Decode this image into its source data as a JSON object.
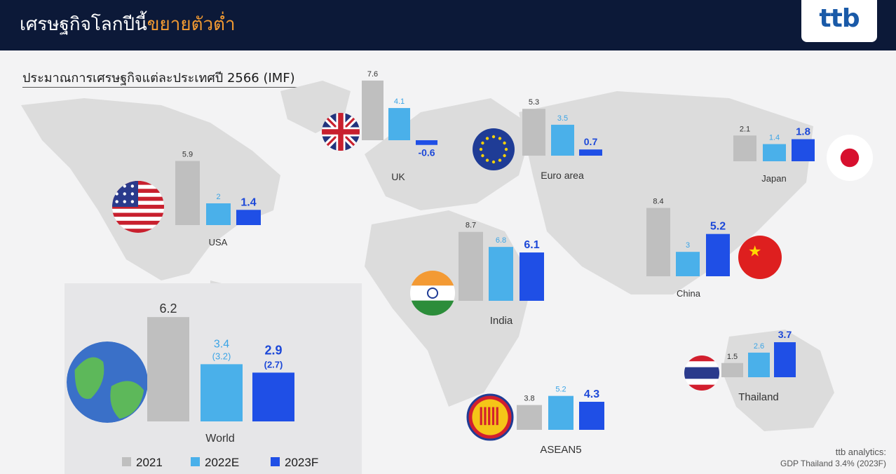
{
  "header": {
    "title_main": "เศรษฐกิจโลกปีนี้",
    "title_highlight": "ขยายตัวต่ำ",
    "logo": "ttb"
  },
  "subtitle": "ประมาณการเศรษฐกิจแต่ละประเทศปี 2566 (IMF)",
  "footer": {
    "line1": "ttb analytics:",
    "line2": "GDP Thailand 3.4% (2023F)"
  },
  "colors": {
    "2021": "#bfbfbf",
    "2022E": "#4ab0ea",
    "2023F": "#1f4fe6",
    "label_2022E": "#3aa4e6",
    "label_2023F": "#1c48d8"
  },
  "chart_data": {
    "type": "bar",
    "legend": [
      "2021",
      "2022E",
      "2023F"
    ],
    "legend_position": "bottom-left",
    "series_names": [
      "2021",
      "2022E",
      "2023F"
    ],
    "groups": [
      {
        "name": "World",
        "values": [
          6.2,
          3.4,
          2.9
        ],
        "alt_labels": [
          "",
          "(3.2)",
          "(2.7)"
        ],
        "icon": "globe-icon"
      },
      {
        "name": "USA",
        "values": [
          5.9,
          2.0,
          1.4
        ],
        "icon": "us-flag-icon"
      },
      {
        "name": "UK",
        "values": [
          7.6,
          4.1,
          -0.6
        ],
        "icon": "uk-flag-icon"
      },
      {
        "name": "Euro area",
        "values": [
          5.3,
          3.5,
          0.7
        ],
        "icon": "eu-flag-icon"
      },
      {
        "name": "Japan",
        "values": [
          2.1,
          1.4,
          1.8
        ],
        "icon": "japan-flag-icon"
      },
      {
        "name": "China",
        "values": [
          8.4,
          3.0,
          5.2
        ],
        "icon": "china-flag-icon"
      },
      {
        "name": "India",
        "values": [
          8.7,
          6.8,
          6.1
        ],
        "icon": "india-flag-icon"
      },
      {
        "name": "Thailand",
        "values": [
          1.5,
          2.6,
          3.7
        ],
        "icon": "thailand-flag-icon"
      },
      {
        "name": "ASEAN5",
        "values": [
          3.8,
          5.2,
          4.3
        ],
        "icon": "asean-emblem-icon"
      }
    ]
  }
}
